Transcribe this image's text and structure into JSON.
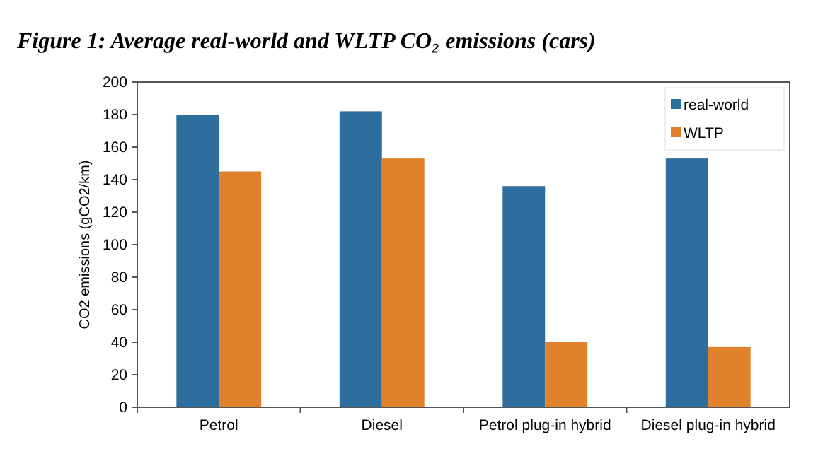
{
  "chart_data": {
    "type": "bar",
    "title": "Figure 1: Average real-world and WLTP CO₂ emissions (cars)",
    "ylabel": "CO2 emissions (gCO2/km)",
    "categories": [
      "Petrol",
      "Diesel",
      "Petrol plug-in hybrid",
      "Diesel plug-in hybrid"
    ],
    "series": [
      {
        "name": "real-world",
        "color": "#2e6e9e",
        "values": [
          180,
          182,
          136,
          153
        ]
      },
      {
        "name": "WLTP",
        "color": "#e0822c",
        "values": [
          145,
          153,
          40,
          37
        ]
      }
    ],
    "ylim": [
      0,
      200
    ],
    "yticks": [
      0,
      20,
      40,
      60,
      80,
      100,
      120,
      140,
      160,
      180,
      200
    ],
    "grid": false,
    "legend": "top right"
  }
}
